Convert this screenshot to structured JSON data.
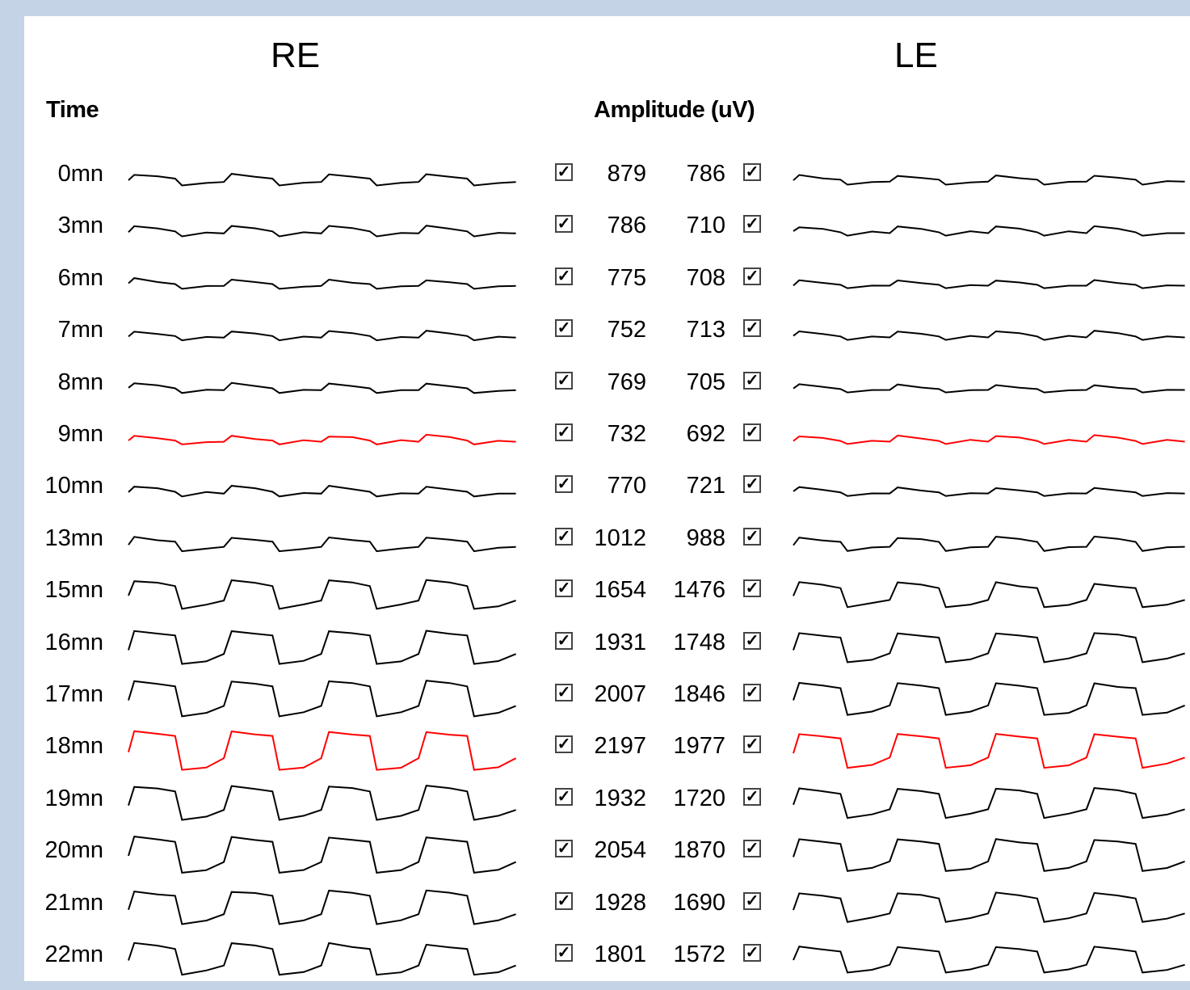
{
  "headers": {
    "re": "RE",
    "le": "LE",
    "time": "Time",
    "amplitude": "Amplitude (uV)"
  },
  "rows": [
    {
      "time": "0mn",
      "re": "879",
      "le": "786",
      "highlight": false,
      "re_checked": true,
      "le_checked": true
    },
    {
      "time": "3mn",
      "re": "786",
      "le": "710",
      "highlight": false,
      "re_checked": true,
      "le_checked": true
    },
    {
      "time": "6mn",
      "re": "775",
      "le": "708",
      "highlight": false,
      "re_checked": true,
      "le_checked": true
    },
    {
      "time": "7mn",
      "re": "752",
      "le": "713",
      "highlight": false,
      "re_checked": true,
      "le_checked": true
    },
    {
      "time": "8mn",
      "re": "769",
      "le": "705",
      "highlight": false,
      "re_checked": true,
      "le_checked": true
    },
    {
      "time": "9mn",
      "re": "732",
      "le": "692",
      "highlight": true,
      "re_checked": true,
      "le_checked": true
    },
    {
      "time": "10mn",
      "re": "770",
      "le": "721",
      "highlight": false,
      "re_checked": true,
      "le_checked": true
    },
    {
      "time": "13mn",
      "re": "1012",
      "le": "988",
      "highlight": false,
      "re_checked": true,
      "le_checked": true
    },
    {
      "time": "15mn",
      "re": "1654",
      "le": "1476",
      "highlight": false,
      "re_checked": true,
      "le_checked": true
    },
    {
      "time": "16mn",
      "re": "1931",
      "le": "1748",
      "highlight": false,
      "re_checked": true,
      "le_checked": true
    },
    {
      "time": "17mn",
      "re": "2007",
      "le": "1846",
      "highlight": false,
      "re_checked": true,
      "le_checked": true
    },
    {
      "time": "18mn",
      "re": "2197",
      "le": "1977",
      "highlight": true,
      "re_checked": true,
      "le_checked": true
    },
    {
      "time": "19mn",
      "re": "1932",
      "le": "1720",
      "highlight": false,
      "re_checked": true,
      "le_checked": true
    },
    {
      "time": "20mn",
      "re": "2054",
      "le": "1870",
      "highlight": false,
      "re_checked": true,
      "le_checked": true
    },
    {
      "time": "21mn",
      "re": "1928",
      "le": "1690",
      "highlight": false,
      "re_checked": true,
      "le_checked": true
    },
    {
      "time": "22mn",
      "re": "1801",
      "le": "1572",
      "highlight": false,
      "re_checked": true,
      "le_checked": true
    }
  ],
  "colors": {
    "background": "#c5d3e6",
    "panel": "#ffffff",
    "trace": "#000000",
    "trace_highlight": "#ff0000"
  },
  "icons": {
    "checkbox_checked": "check-icon"
  }
}
